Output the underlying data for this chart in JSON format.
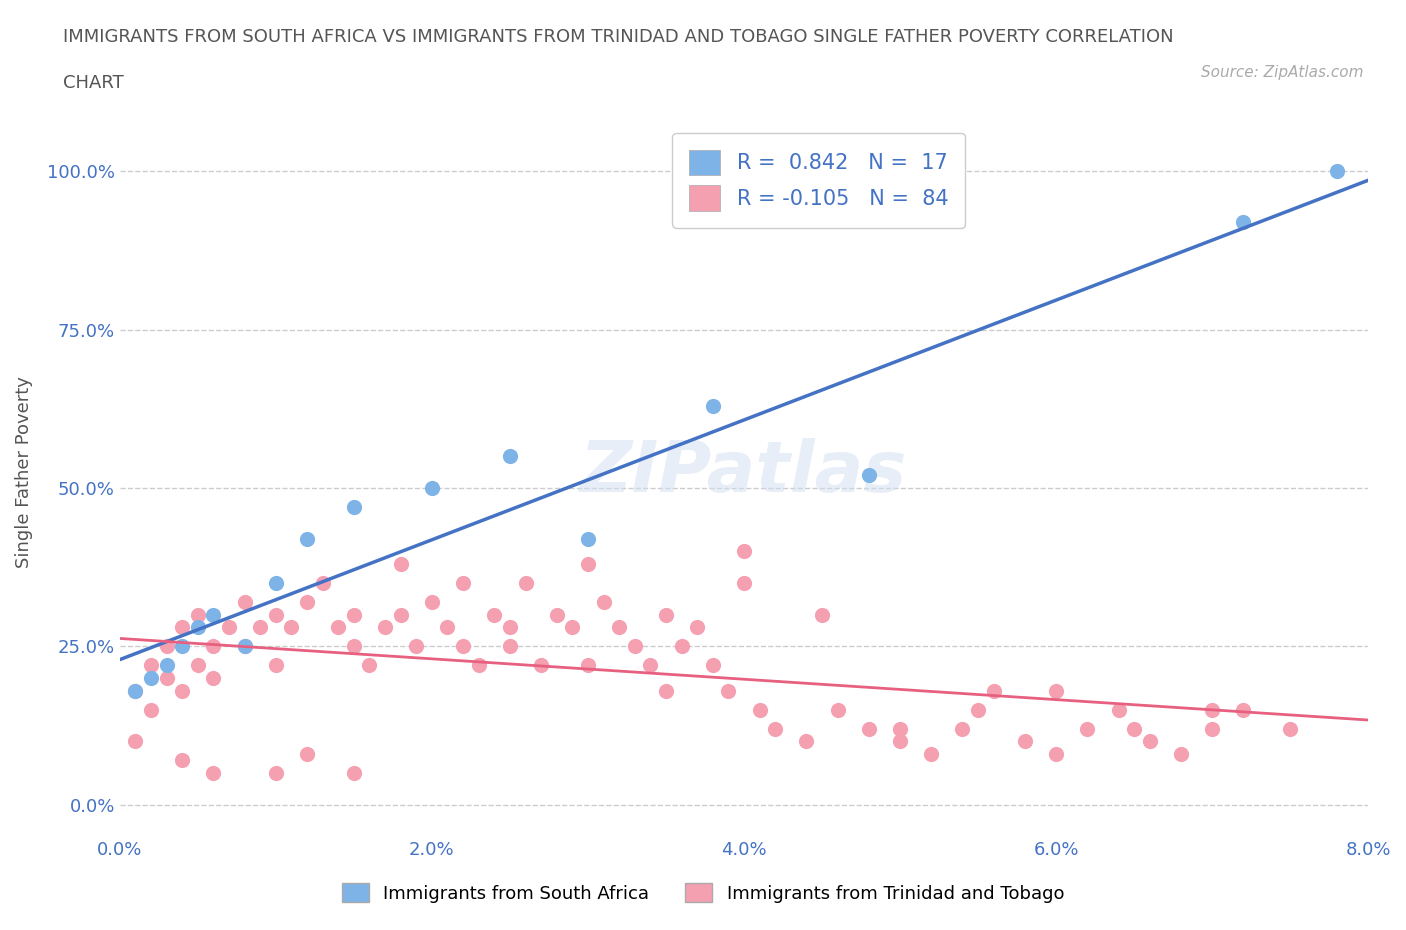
{
  "title_line1": "IMMIGRANTS FROM SOUTH AFRICA VS IMMIGRANTS FROM TRINIDAD AND TOBAGO SINGLE FATHER POVERTY CORRELATION",
  "title_line2": "CHART",
  "source": "Source: ZipAtlas.com",
  "xlabel": "",
  "ylabel": "Single Father Poverty",
  "xlim": [
    0.0,
    0.08
  ],
  "ylim": [
    -0.05,
    1.1
  ],
  "xticks": [
    0.0,
    0.02,
    0.04,
    0.06,
    0.08
  ],
  "xtick_labels": [
    "0.0%",
    "2.0%",
    "4.0%",
    "6.0%",
    "8.0%"
  ],
  "yticks": [
    0.0,
    0.25,
    0.5,
    0.75,
    1.0
  ],
  "ytick_labels": [
    "0.0%",
    "25.0%",
    "50.0%",
    "75.0%",
    "100.0%"
  ],
  "blue_color": "#7EB3E8",
  "pink_color": "#F5A0B0",
  "line_blue": "#4472C4",
  "line_pink": "#E86080",
  "R_blue": 0.842,
  "N_blue": 17,
  "R_pink": -0.105,
  "N_pink": 84,
  "legend_text_color": "#4472C4",
  "title_color": "#555555",
  "axis_color": "#4472C4",
  "watermark": "ZIPatlas",
  "blue_scatter_x": [
    0.001,
    0.002,
    0.003,
    0.004,
    0.005,
    0.006,
    0.008,
    0.01,
    0.012,
    0.015,
    0.02,
    0.025,
    0.03,
    0.038,
    0.048,
    0.072,
    0.078
  ],
  "blue_scatter_y": [
    0.18,
    0.2,
    0.22,
    0.25,
    0.28,
    0.3,
    0.25,
    0.35,
    0.42,
    0.47,
    0.5,
    0.55,
    0.42,
    0.63,
    0.52,
    0.92,
    1.0
  ],
  "pink_scatter_x": [
    0.001,
    0.001,
    0.002,
    0.002,
    0.003,
    0.003,
    0.004,
    0.004,
    0.005,
    0.005,
    0.006,
    0.006,
    0.007,
    0.008,
    0.008,
    0.009,
    0.01,
    0.01,
    0.011,
    0.012,
    0.013,
    0.014,
    0.015,
    0.015,
    0.016,
    0.017,
    0.018,
    0.019,
    0.02,
    0.021,
    0.022,
    0.023,
    0.024,
    0.025,
    0.026,
    0.027,
    0.028,
    0.029,
    0.03,
    0.031,
    0.032,
    0.033,
    0.034,
    0.035,
    0.036,
    0.037,
    0.038,
    0.039,
    0.04,
    0.041,
    0.042,
    0.044,
    0.046,
    0.048,
    0.05,
    0.052,
    0.054,
    0.056,
    0.058,
    0.06,
    0.062,
    0.064,
    0.066,
    0.068,
    0.07,
    0.072,
    0.01,
    0.012,
    0.015,
    0.018,
    0.022,
    0.025,
    0.03,
    0.035,
    0.04,
    0.045,
    0.05,
    0.055,
    0.06,
    0.065,
    0.07,
    0.075,
    0.004,
    0.006
  ],
  "pink_scatter_y": [
    0.18,
    0.1,
    0.22,
    0.15,
    0.25,
    0.2,
    0.28,
    0.18,
    0.3,
    0.22,
    0.25,
    0.2,
    0.28,
    0.32,
    0.25,
    0.28,
    0.3,
    0.22,
    0.28,
    0.32,
    0.35,
    0.28,
    0.3,
    0.25,
    0.22,
    0.28,
    0.3,
    0.25,
    0.32,
    0.28,
    0.25,
    0.22,
    0.3,
    0.28,
    0.35,
    0.22,
    0.3,
    0.28,
    0.38,
    0.32,
    0.28,
    0.25,
    0.22,
    0.3,
    0.25,
    0.28,
    0.22,
    0.18,
    0.4,
    0.15,
    0.12,
    0.1,
    0.15,
    0.12,
    0.1,
    0.08,
    0.12,
    0.18,
    0.1,
    0.08,
    0.12,
    0.15,
    0.1,
    0.08,
    0.12,
    0.15,
    0.05,
    0.08,
    0.05,
    0.38,
    0.35,
    0.25,
    0.22,
    0.18,
    0.35,
    0.3,
    0.12,
    0.15,
    0.18,
    0.12,
    0.15,
    0.12,
    0.07,
    0.05
  ]
}
